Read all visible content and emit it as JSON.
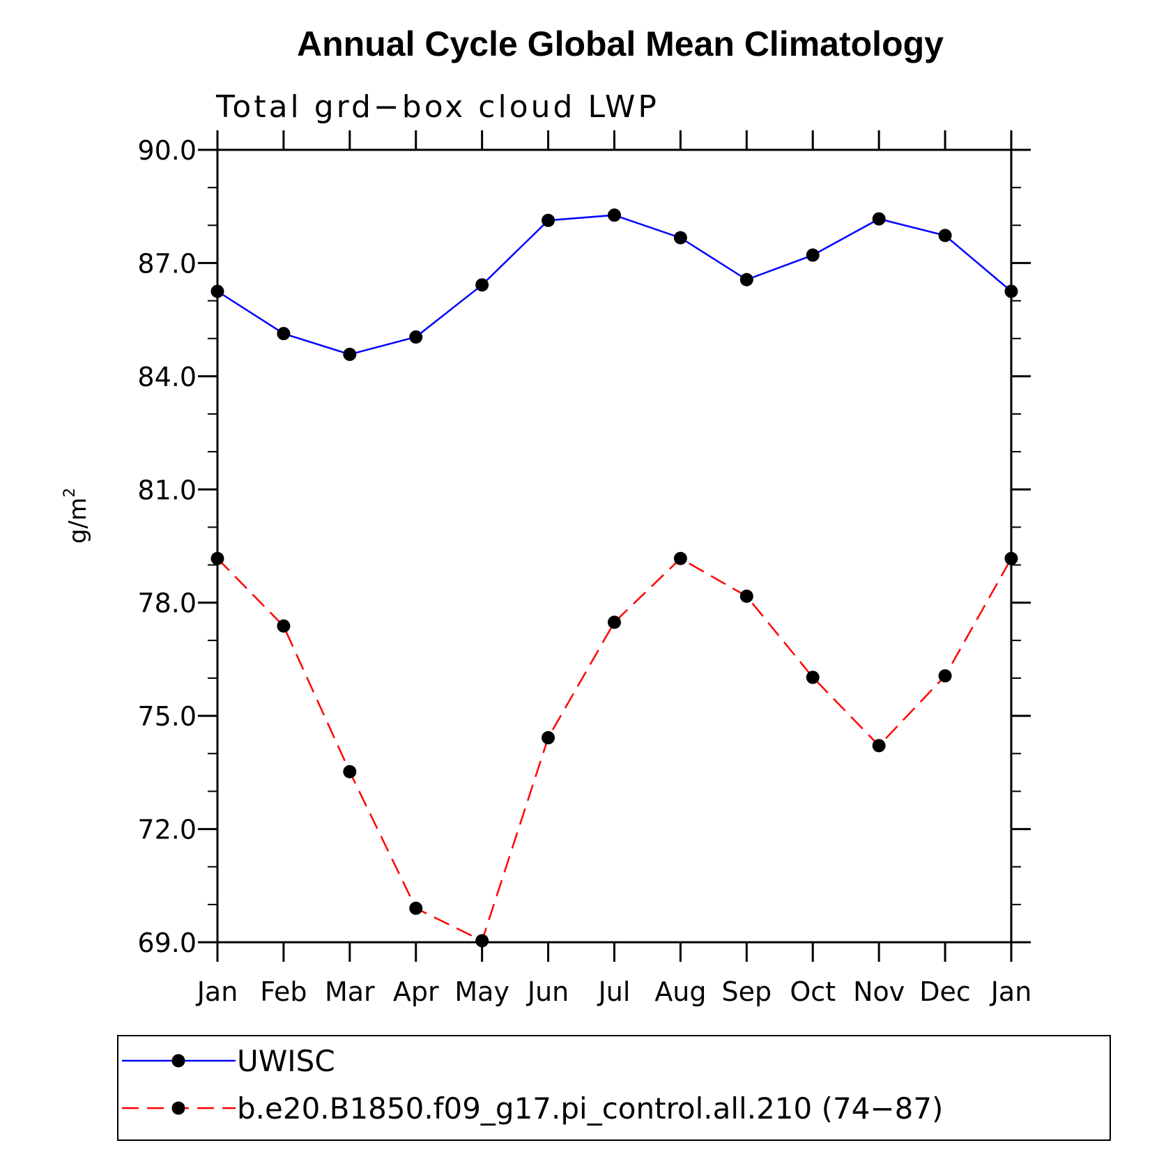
{
  "chart_data": {
    "type": "line",
    "title": "Annual Cycle Global Mean Climatology",
    "subtitle": "Total grd−box cloud LWP",
    "ylabel_base": "g/m",
    "ylabel_sup": "2",
    "ylim": [
      69.0,
      90.0
    ],
    "yticks": [
      69.0,
      72.0,
      75.0,
      78.0,
      81.0,
      84.0,
      87.0,
      90.0
    ],
    "ytick_labels": [
      "69.0",
      "72.0",
      "75.0",
      "78.0",
      "81.0",
      "84.0",
      "87.0",
      "90.0"
    ],
    "categories": [
      "Jan",
      "Feb",
      "Mar",
      "Apr",
      "May",
      "Jun",
      "Jul",
      "Aug",
      "Sep",
      "Oct",
      "Nov",
      "Dec",
      "Jan"
    ],
    "series": [
      {
        "name": "UWISC",
        "color": "#0000ff",
        "dash": "solid",
        "values": [
          86.25,
          85.13,
          84.58,
          85.04,
          86.42,
          88.13,
          88.27,
          87.67,
          86.56,
          87.21,
          88.17,
          87.73,
          86.25
        ]
      },
      {
        "name": "b.e20.B1850.f09_g17.pi_control.all.210 (74−87)",
        "color": "#ff0000",
        "dash": "dashed",
        "values": [
          79.17,
          77.38,
          73.52,
          69.9,
          69.04,
          74.42,
          77.48,
          79.17,
          78.17,
          76.02,
          74.21,
          76.06,
          79.17
        ]
      }
    ],
    "marker_color": "#000000",
    "grid": false,
    "legend_position": "bottom"
  }
}
